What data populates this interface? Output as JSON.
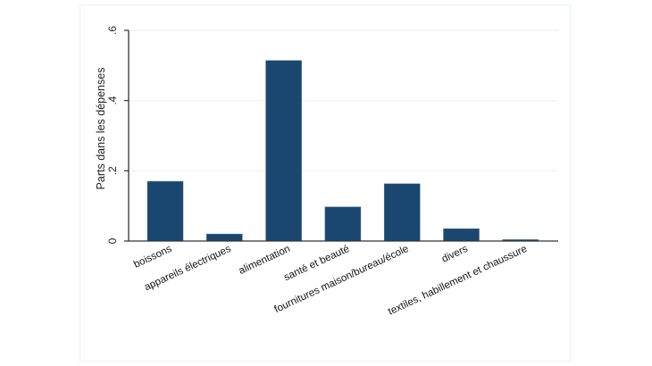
{
  "chart_data": {
    "type": "bar",
    "title": "",
    "xlabel": "",
    "ylabel": "Parts dans les dépenses",
    "ylim": [
      0,
      0.6
    ],
    "yticks": [
      0,
      0.2,
      0.4,
      0.6
    ],
    "ytick_labels": [
      "0",
      ".2",
      ".4",
      ".6"
    ],
    "grid": true,
    "legend": null,
    "categories": [
      "boissons",
      "appareils électriques",
      "alimentation",
      "santé et beauté",
      "fournitures maison/bureau/école",
      "divers",
      "textiles, habillement et chaussure"
    ],
    "values": [
      0.17,
      0.02,
      0.514,
      0.097,
      0.163,
      0.035,
      0.004
    ],
    "colors": {
      "bar": "#1a476f",
      "grid": "#eaf2f3",
      "axis": "#333333"
    }
  }
}
